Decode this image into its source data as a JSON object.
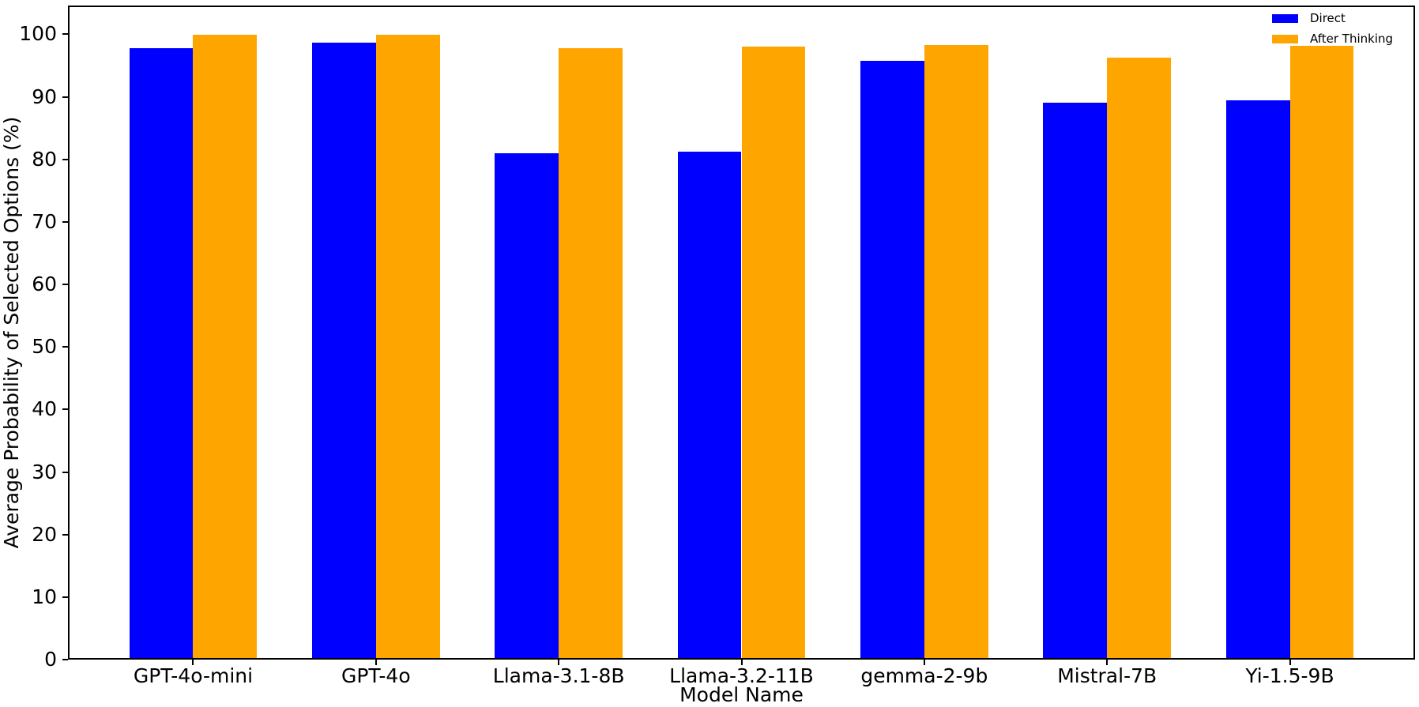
{
  "chart_data": {
    "type": "bar",
    "title": "",
    "xlabel": "Model Name",
    "ylabel": "Average Probability of Selected Options (%)",
    "categories": [
      "GPT-4o-mini",
      "GPT-4o",
      "Llama-3.1-8B",
      "Llama-3.2-11B",
      "gemma-2-9b",
      "Mistral-7B",
      "Yi-1.5-9B"
    ],
    "series": [
      {
        "name": "Direct",
        "color": "#0000ff",
        "values": [
          97.8,
          98.7,
          81.0,
          81.2,
          95.8,
          89.0,
          89.5
        ]
      },
      {
        "name": "After Thinking",
        "color": "#ffa500",
        "values": [
          99.9,
          99.9,
          97.8,
          98.0,
          98.3,
          96.3,
          98.2
        ]
      }
    ],
    "yticks": [
      0,
      10,
      20,
      30,
      40,
      50,
      60,
      70,
      80,
      90,
      100
    ],
    "ylim": [
      0,
      104.6
    ],
    "grid": false,
    "legend_position": "upper right",
    "axis_color": "#000000",
    "background_color": "#ffffff"
  }
}
